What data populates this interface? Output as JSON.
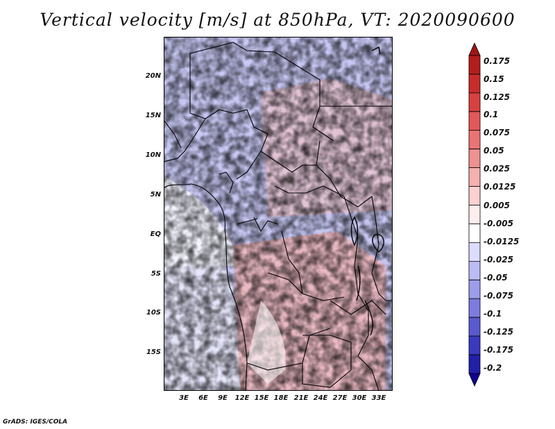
{
  "title": "Vertical velocity [m/s] at 850hPa, VT: 2020090600",
  "footer": "GrADS: IGES/COLA",
  "map": {
    "latitude_labels": [
      "20N",
      "15N",
      "10N",
      "5N",
      "EQ",
      "5S",
      "10S",
      "15S"
    ],
    "longitude_labels": [
      "3E",
      "6E",
      "9E",
      "12E",
      "15E",
      "18E",
      "21E",
      "24E",
      "27E",
      "30E",
      "33E"
    ],
    "lat_range": [
      -20,
      25
    ],
    "lon_range": [
      0,
      35
    ]
  },
  "colorbar": {
    "units": "m/s",
    "levels": [
      "0.175",
      "0.15",
      "0.125",
      "0.1",
      "0.075",
      "0.05",
      "0.025",
      "0.0125",
      "0.005",
      "-0.005",
      "-0.0125",
      "-0.025",
      "-0.05",
      "-0.075",
      "-0.1",
      "-0.125",
      "-0.175",
      "-0.2"
    ],
    "colors": [
      "#a01414",
      "#b51d1d",
      "#c92b2b",
      "#d94040",
      "#e35858",
      "#ea7474",
      "#f09090",
      "#f5b0b0",
      "#fad0d0",
      "#fdeeee",
      "#ffffff",
      "#dcdcff",
      "#bcbcf5",
      "#9c9cec",
      "#7c7ce0",
      "#5a5ad0",
      "#3a3abf",
      "#2020a8",
      "#100090"
    ]
  }
}
